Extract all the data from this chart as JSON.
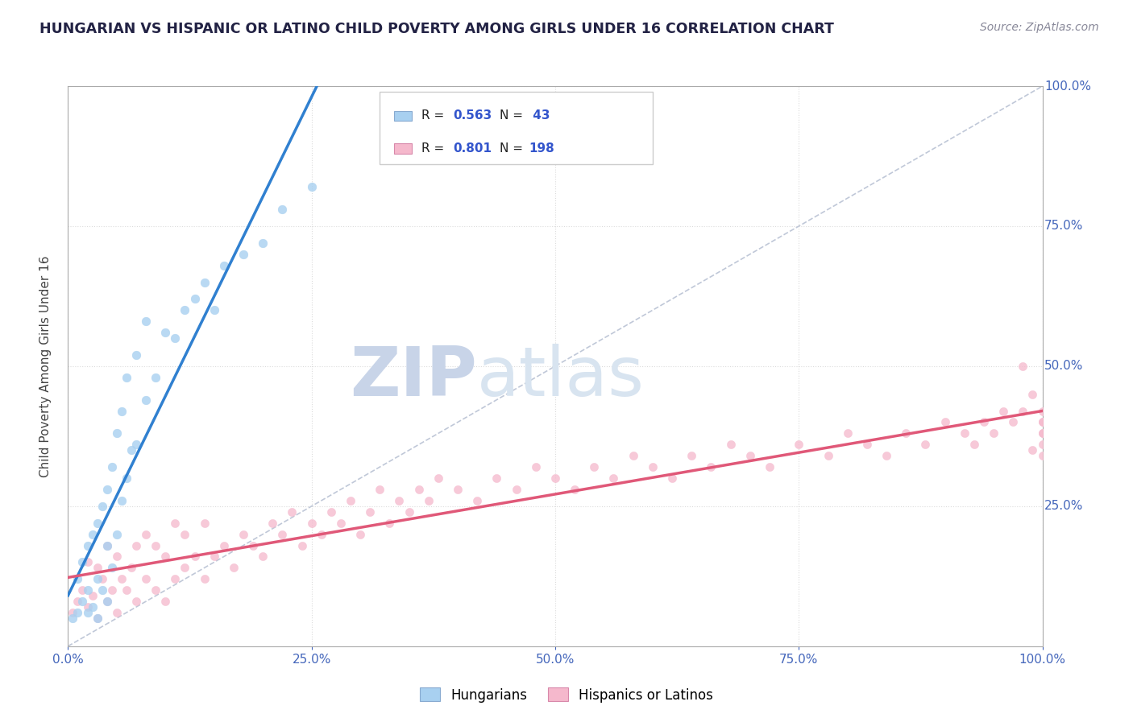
{
  "title": "HUNGARIAN VS HISPANIC OR LATINO CHILD POVERTY AMONG GIRLS UNDER 16 CORRELATION CHART",
  "source": "Source: ZipAtlas.com",
  "ylabel": "Child Poverty Among Girls Under 16",
  "xlim": [
    0,
    1
  ],
  "ylim": [
    0,
    1
  ],
  "background_color": "#ffffff",
  "grid_color": "#cccccc",
  "watermark_text": "ZIPatlas",
  "watermark_color": "#cdd8e8",
  "legend_blue_label": "Hungarians",
  "legend_pink_label": "Hispanics or Latinos",
  "blue_scatter_color": "#a8d0f0",
  "pink_scatter_color": "#f5b8cc",
  "blue_line_color": "#3080d0",
  "pink_line_color": "#e05878",
  "diagonal_color": "#c0c8d8",
  "tick_color": "#4466bb",
  "title_color": "#222244",
  "source_color": "#888899",
  "blue_points_x": [
    0.005,
    0.01,
    0.01,
    0.015,
    0.015,
    0.02,
    0.02,
    0.02,
    0.025,
    0.025,
    0.03,
    0.03,
    0.03,
    0.035,
    0.035,
    0.04,
    0.04,
    0.04,
    0.045,
    0.045,
    0.05,
    0.05,
    0.055,
    0.055,
    0.06,
    0.06,
    0.065,
    0.07,
    0.07,
    0.08,
    0.08,
    0.09,
    0.1,
    0.11,
    0.12,
    0.13,
    0.14,
    0.15,
    0.16,
    0.18,
    0.2,
    0.22,
    0.25
  ],
  "blue_points_y": [
    0.05,
    0.06,
    0.12,
    0.08,
    0.15,
    0.06,
    0.1,
    0.18,
    0.07,
    0.2,
    0.05,
    0.12,
    0.22,
    0.1,
    0.25,
    0.08,
    0.18,
    0.28,
    0.14,
    0.32,
    0.2,
    0.38,
    0.26,
    0.42,
    0.3,
    0.48,
    0.35,
    0.36,
    0.52,
    0.44,
    0.58,
    0.48,
    0.56,
    0.55,
    0.6,
    0.62,
    0.65,
    0.6,
    0.68,
    0.7,
    0.72,
    0.78,
    0.82
  ],
  "pink_points_x": [
    0.005,
    0.01,
    0.015,
    0.02,
    0.02,
    0.025,
    0.03,
    0.03,
    0.035,
    0.04,
    0.04,
    0.045,
    0.05,
    0.05,
    0.055,
    0.06,
    0.065,
    0.07,
    0.07,
    0.08,
    0.08,
    0.09,
    0.09,
    0.1,
    0.1,
    0.11,
    0.11,
    0.12,
    0.12,
    0.13,
    0.14,
    0.14,
    0.15,
    0.16,
    0.17,
    0.18,
    0.19,
    0.2,
    0.21,
    0.22,
    0.23,
    0.24,
    0.25,
    0.26,
    0.27,
    0.28,
    0.29,
    0.3,
    0.31,
    0.32,
    0.33,
    0.34,
    0.35,
    0.36,
    0.37,
    0.38,
    0.4,
    0.42,
    0.44,
    0.46,
    0.48,
    0.5,
    0.52,
    0.54,
    0.56,
    0.58,
    0.6,
    0.62,
    0.64,
    0.66,
    0.68,
    0.7,
    0.72,
    0.75,
    0.78,
    0.8,
    0.82,
    0.84,
    0.86,
    0.88,
    0.9,
    0.92,
    0.93,
    0.94,
    0.95,
    0.96,
    0.97,
    0.98,
    0.98,
    0.99,
    0.99,
    1.0,
    1.0,
    1.0,
    1.0,
    1.0,
    1.0,
    1.0
  ],
  "pink_points_y": [
    0.06,
    0.08,
    0.1,
    0.07,
    0.15,
    0.09,
    0.05,
    0.14,
    0.12,
    0.08,
    0.18,
    0.1,
    0.06,
    0.16,
    0.12,
    0.1,
    0.14,
    0.08,
    0.18,
    0.12,
    0.2,
    0.1,
    0.18,
    0.08,
    0.16,
    0.12,
    0.22,
    0.14,
    0.2,
    0.16,
    0.12,
    0.22,
    0.16,
    0.18,
    0.14,
    0.2,
    0.18,
    0.16,
    0.22,
    0.2,
    0.24,
    0.18,
    0.22,
    0.2,
    0.24,
    0.22,
    0.26,
    0.2,
    0.24,
    0.28,
    0.22,
    0.26,
    0.24,
    0.28,
    0.26,
    0.3,
    0.28,
    0.26,
    0.3,
    0.28,
    0.32,
    0.3,
    0.28,
    0.32,
    0.3,
    0.34,
    0.32,
    0.3,
    0.34,
    0.32,
    0.36,
    0.34,
    0.32,
    0.36,
    0.34,
    0.38,
    0.36,
    0.34,
    0.38,
    0.36,
    0.4,
    0.38,
    0.36,
    0.4,
    0.38,
    0.42,
    0.4,
    0.42,
    0.5,
    0.45,
    0.35,
    0.4,
    0.36,
    0.38,
    0.42,
    0.34,
    0.4,
    0.38
  ]
}
